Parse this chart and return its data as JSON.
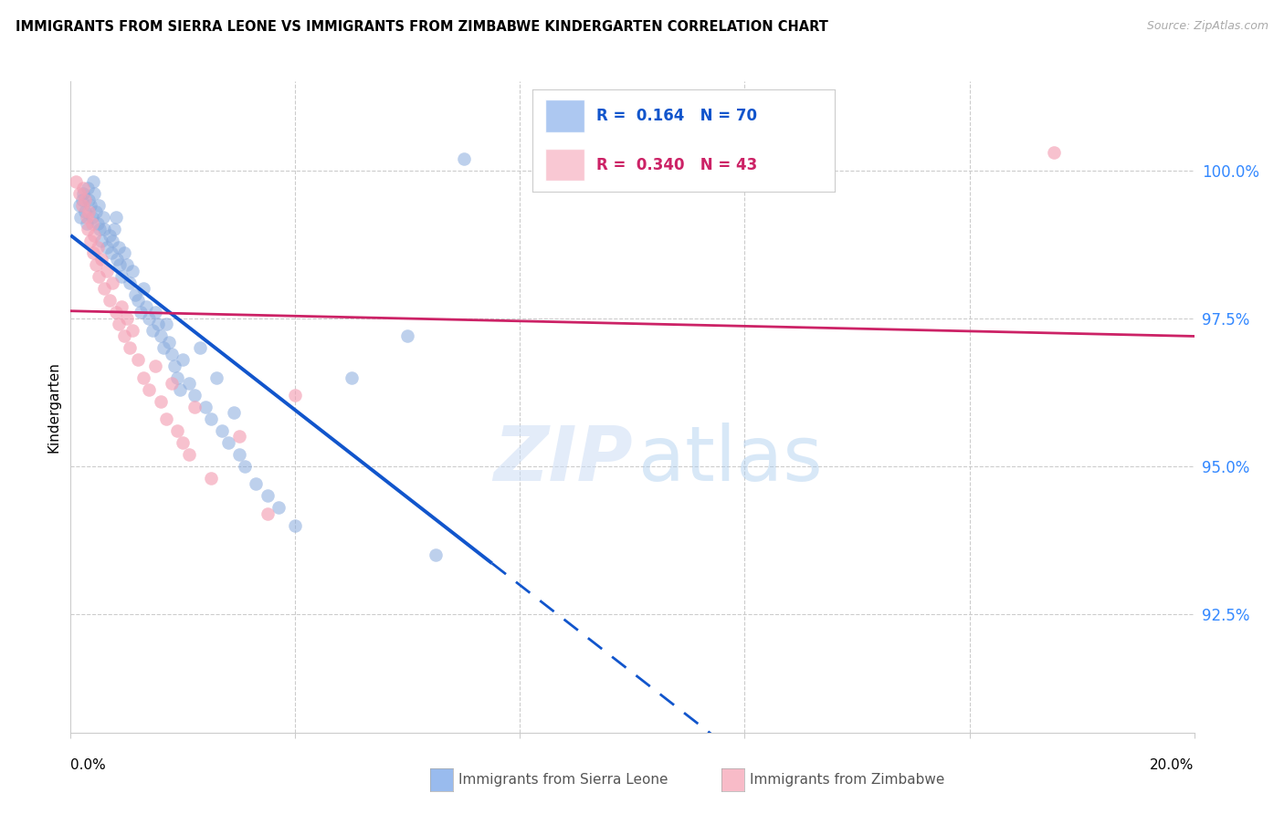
{
  "title": "IMMIGRANTS FROM SIERRA LEONE VS IMMIGRANTS FROM ZIMBABWE KINDERGARTEN CORRELATION CHART",
  "source": "Source: ZipAtlas.com",
  "ylabel": "Kindergarten",
  "ytick_labels": [
    "92.5%",
    "95.0%",
    "97.5%",
    "100.0%"
  ],
  "ytick_values": [
    92.5,
    95.0,
    97.5,
    100.0
  ],
  "xlim": [
    0.0,
    20.0
  ],
  "ylim": [
    90.5,
    101.5
  ],
  "legend_r_sl": "0.164",
  "legend_n_sl": "70",
  "legend_r_zw": "0.340",
  "legend_n_zw": "43",
  "color_sl": "#88aadd",
  "color_zw": "#f4a0b5",
  "color_sl_line": "#1155cc",
  "color_zw_line": "#cc2266",
  "legend_sl_fill": "#99bbee",
  "legend_zw_fill": "#f8bbc8",
  "sl_scatter_x": [
    0.15,
    0.18,
    0.2,
    0.22,
    0.25,
    0.28,
    0.3,
    0.32,
    0.35,
    0.38,
    0.4,
    0.42,
    0.45,
    0.48,
    0.5,
    0.52,
    0.55,
    0.58,
    0.6,
    0.65,
    0.7,
    0.72,
    0.75,
    0.78,
    0.8,
    0.82,
    0.85,
    0.88,
    0.9,
    0.95,
    1.0,
    1.05,
    1.1,
    1.15,
    1.2,
    1.25,
    1.3,
    1.35,
    1.4,
    1.45,
    1.5,
    1.55,
    1.6,
    1.65,
    1.7,
    1.75,
    1.8,
    1.85,
    1.9,
    1.95,
    2.0,
    2.1,
    2.2,
    2.3,
    2.4,
    2.5,
    2.6,
    2.7,
    2.8,
    2.9,
    3.0,
    3.1,
    3.3,
    3.5,
    3.7,
    4.0,
    5.0,
    6.0,
    6.5,
    7.0
  ],
  "sl_scatter_y": [
    99.4,
    99.2,
    99.5,
    99.6,
    99.3,
    99.1,
    99.7,
    99.5,
    99.4,
    99.2,
    99.8,
    99.6,
    99.3,
    99.1,
    99.4,
    99.0,
    98.8,
    99.2,
    99.0,
    98.7,
    98.9,
    98.6,
    98.8,
    99.0,
    99.2,
    98.5,
    98.7,
    98.4,
    98.2,
    98.6,
    98.4,
    98.1,
    98.3,
    97.9,
    97.8,
    97.6,
    98.0,
    97.7,
    97.5,
    97.3,
    97.6,
    97.4,
    97.2,
    97.0,
    97.4,
    97.1,
    96.9,
    96.7,
    96.5,
    96.3,
    96.8,
    96.4,
    96.2,
    97.0,
    96.0,
    95.8,
    96.5,
    95.6,
    95.4,
    95.9,
    95.2,
    95.0,
    94.7,
    94.5,
    94.3,
    94.0,
    96.5,
    97.2,
    93.5,
    100.2
  ],
  "zw_scatter_x": [
    0.1,
    0.15,
    0.2,
    0.22,
    0.25,
    0.28,
    0.3,
    0.32,
    0.35,
    0.38,
    0.4,
    0.42,
    0.45,
    0.48,
    0.5,
    0.55,
    0.6,
    0.65,
    0.7,
    0.75,
    0.8,
    0.85,
    0.9,
    0.95,
    1.0,
    1.05,
    1.1,
    1.2,
    1.3,
    1.4,
    1.5,
    1.6,
    1.7,
    1.8,
    1.9,
    2.0,
    2.1,
    2.2,
    2.5,
    3.0,
    3.5,
    4.0,
    17.5
  ],
  "zw_scatter_y": [
    99.8,
    99.6,
    99.4,
    99.7,
    99.5,
    99.2,
    99.0,
    99.3,
    98.8,
    99.1,
    98.6,
    98.9,
    98.4,
    98.7,
    98.2,
    98.5,
    98.0,
    98.3,
    97.8,
    98.1,
    97.6,
    97.4,
    97.7,
    97.2,
    97.5,
    97.0,
    97.3,
    96.8,
    96.5,
    96.3,
    96.7,
    96.1,
    95.8,
    96.4,
    95.6,
    95.4,
    95.2,
    96.0,
    94.8,
    95.5,
    94.2,
    96.2,
    100.3
  ]
}
